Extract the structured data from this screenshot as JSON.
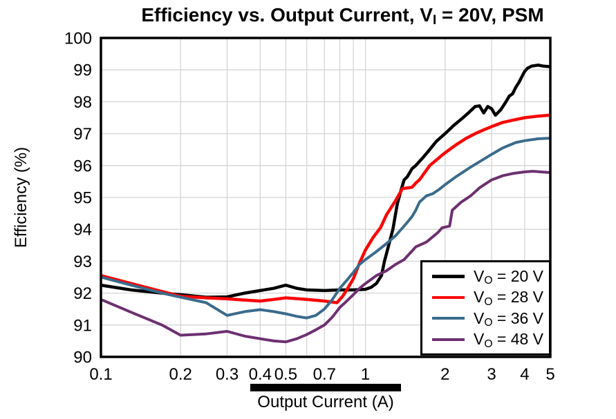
{
  "chart_data": {
    "type": "line",
    "title": "Efficiency vs. Output Current, VI = 20V, PSM",
    "title_parts": {
      "prefix": "Efficiency vs. Output Current, V",
      "sub": "I",
      "suffix": " = 20V, PSM"
    },
    "xlabel": "Output Current (A)",
    "ylabel": "Efficiency (%)",
    "x_scale": "log",
    "xlim": [
      0.1,
      5
    ],
    "ylim": [
      90,
      100
    ],
    "grid": true,
    "grid_color": "#d5d5d5",
    "frame_color": "#000000",
    "x_ticks": [
      {
        "v": 0.1,
        "label": "0.1"
      },
      {
        "v": 0.2,
        "label": "0.2"
      },
      {
        "v": 0.3,
        "label": "0.3"
      },
      {
        "v": 0.4,
        "label": "0.4"
      },
      {
        "v": 0.5,
        "label": "0.5"
      },
      {
        "v": 0.7,
        "label": "0.7"
      },
      {
        "v": 1,
        "label": "1"
      },
      {
        "v": 2,
        "label": "2"
      },
      {
        "v": 3,
        "label": "3"
      },
      {
        "v": 4,
        "label": "4"
      },
      {
        "v": 5,
        "label": "5"
      }
    ],
    "x_gridlines": [
      0.2,
      0.3,
      0.4,
      0.5,
      0.6,
      0.7,
      0.8,
      0.9,
      1,
      2,
      3,
      4
    ],
    "y_ticks": [
      90,
      91,
      92,
      93,
      94,
      95,
      96,
      97,
      98,
      99,
      100
    ],
    "legend_position": "lower-right",
    "series": [
      {
        "id": "vo-20",
        "name": "VO = 20 V",
        "label_parts": {
          "prefix": "V",
          "sub": "O",
          "suffix": " = 20 V"
        },
        "color": "#000000",
        "stroke_width": 4.5,
        "points": [
          [
            0.1,
            92.25
          ],
          [
            0.13,
            92.1
          ],
          [
            0.17,
            92.0
          ],
          [
            0.2,
            91.95
          ],
          [
            0.25,
            91.87
          ],
          [
            0.3,
            91.88
          ],
          [
            0.35,
            92.0
          ],
          [
            0.4,
            92.08
          ],
          [
            0.45,
            92.15
          ],
          [
            0.5,
            92.25
          ],
          [
            0.55,
            92.15
          ],
          [
            0.6,
            92.1
          ],
          [
            0.7,
            92.08
          ],
          [
            0.8,
            92.1
          ],
          [
            0.9,
            92.1
          ],
          [
            1.0,
            92.12
          ],
          [
            1.05,
            92.18
          ],
          [
            1.1,
            92.3
          ],
          [
            1.15,
            92.55
          ],
          [
            1.18,
            93.0
          ],
          [
            1.22,
            93.45
          ],
          [
            1.27,
            94.0
          ],
          [
            1.32,
            94.8
          ],
          [
            1.36,
            95.2
          ],
          [
            1.4,
            95.55
          ],
          [
            1.44,
            95.65
          ],
          [
            1.5,
            95.9
          ],
          [
            1.55,
            96.0
          ],
          [
            1.65,
            96.25
          ],
          [
            1.75,
            96.5
          ],
          [
            1.85,
            96.75
          ],
          [
            2.0,
            97.0
          ],
          [
            2.15,
            97.25
          ],
          [
            2.3,
            97.45
          ],
          [
            2.45,
            97.65
          ],
          [
            2.6,
            97.85
          ],
          [
            2.7,
            97.87
          ],
          [
            2.8,
            97.65
          ],
          [
            2.9,
            97.85
          ],
          [
            3.0,
            97.78
          ],
          [
            3.1,
            97.58
          ],
          [
            3.25,
            97.75
          ],
          [
            3.4,
            98.0
          ],
          [
            3.5,
            98.18
          ],
          [
            3.6,
            98.25
          ],
          [
            3.7,
            98.45
          ],
          [
            3.8,
            98.6
          ],
          [
            3.9,
            98.78
          ],
          [
            4.0,
            98.95
          ],
          [
            4.1,
            99.05
          ],
          [
            4.25,
            99.12
          ],
          [
            4.5,
            99.15
          ],
          [
            4.7,
            99.12
          ],
          [
            5.0,
            99.1
          ]
        ]
      },
      {
        "id": "vo-28",
        "name": "VO = 28 V",
        "label_parts": {
          "prefix": "V",
          "sub": "O",
          "suffix": " = 28 V"
        },
        "color": "#fa0606",
        "stroke_width": 4.5,
        "points": [
          [
            0.1,
            92.55
          ],
          [
            0.13,
            92.3
          ],
          [
            0.17,
            92.05
          ],
          [
            0.2,
            91.9
          ],
          [
            0.25,
            91.85
          ],
          [
            0.3,
            91.82
          ],
          [
            0.35,
            91.78
          ],
          [
            0.4,
            91.75
          ],
          [
            0.45,
            91.8
          ],
          [
            0.5,
            91.85
          ],
          [
            0.6,
            91.8
          ],
          [
            0.7,
            91.75
          ],
          [
            0.78,
            91.7
          ],
          [
            0.82,
            91.9
          ],
          [
            0.85,
            92.1
          ],
          [
            0.9,
            92.45
          ],
          [
            0.95,
            92.95
          ],
          [
            1.0,
            93.35
          ],
          [
            1.07,
            93.75
          ],
          [
            1.14,
            94.05
          ],
          [
            1.2,
            94.45
          ],
          [
            1.3,
            94.9
          ],
          [
            1.38,
            95.28
          ],
          [
            1.45,
            95.3
          ],
          [
            1.5,
            95.32
          ],
          [
            1.55,
            95.45
          ],
          [
            1.6,
            95.55
          ],
          [
            1.75,
            96.0
          ],
          [
            1.9,
            96.25
          ],
          [
            2.0,
            96.4
          ],
          [
            2.2,
            96.65
          ],
          [
            2.4,
            96.85
          ],
          [
            2.6,
            97.0
          ],
          [
            2.8,
            97.12
          ],
          [
            3.0,
            97.22
          ],
          [
            3.3,
            97.35
          ],
          [
            3.6,
            97.42
          ],
          [
            4.0,
            97.5
          ],
          [
            4.5,
            97.55
          ],
          [
            5.0,
            97.58
          ]
        ]
      },
      {
        "id": "vo-36",
        "name": "VO = 36 V",
        "label_parts": {
          "prefix": "V",
          "sub": "O",
          "suffix": " = 36 V"
        },
        "color": "#3a6b8c",
        "stroke_width": 4,
        "points": [
          [
            0.1,
            92.5
          ],
          [
            0.13,
            92.25
          ],
          [
            0.17,
            92.0
          ],
          [
            0.2,
            91.87
          ],
          [
            0.25,
            91.7
          ],
          [
            0.3,
            91.3
          ],
          [
            0.35,
            91.42
          ],
          [
            0.4,
            91.48
          ],
          [
            0.45,
            91.42
          ],
          [
            0.5,
            91.35
          ],
          [
            0.55,
            91.27
          ],
          [
            0.6,
            91.22
          ],
          [
            0.65,
            91.3
          ],
          [
            0.7,
            91.5
          ],
          [
            0.75,
            91.8
          ],
          [
            0.8,
            92.15
          ],
          [
            0.85,
            92.4
          ],
          [
            0.9,
            92.65
          ],
          [
            0.95,
            92.9
          ],
          [
            1.0,
            93.05
          ],
          [
            1.1,
            93.3
          ],
          [
            1.2,
            93.55
          ],
          [
            1.3,
            93.8
          ],
          [
            1.4,
            94.1
          ],
          [
            1.5,
            94.4
          ],
          [
            1.55,
            94.6
          ],
          [
            1.6,
            94.85
          ],
          [
            1.7,
            95.05
          ],
          [
            1.8,
            95.12
          ],
          [
            1.9,
            95.25
          ],
          [
            2.0,
            95.4
          ],
          [
            2.2,
            95.65
          ],
          [
            2.5,
            95.95
          ],
          [
            2.8,
            96.2
          ],
          [
            3.0,
            96.35
          ],
          [
            3.3,
            96.55
          ],
          [
            3.7,
            96.72
          ],
          [
            4.0,
            96.78
          ],
          [
            4.5,
            96.84
          ],
          [
            5.0,
            96.86
          ]
        ]
      },
      {
        "id": "vo-48",
        "name": "VO = 48 V",
        "label_parts": {
          "prefix": "V",
          "sub": "O",
          "suffix": " = 48 V"
        },
        "color": "#6d3070",
        "stroke_width": 4,
        "points": [
          [
            0.1,
            91.8
          ],
          [
            0.13,
            91.4
          ],
          [
            0.17,
            91.0
          ],
          [
            0.2,
            90.68
          ],
          [
            0.25,
            90.72
          ],
          [
            0.3,
            90.8
          ],
          [
            0.35,
            90.65
          ],
          [
            0.4,
            90.57
          ],
          [
            0.45,
            90.5
          ],
          [
            0.5,
            90.47
          ],
          [
            0.55,
            90.57
          ],
          [
            0.6,
            90.7
          ],
          [
            0.65,
            90.85
          ],
          [
            0.7,
            91.0
          ],
          [
            0.75,
            91.25
          ],
          [
            0.8,
            91.55
          ],
          [
            0.85,
            91.75
          ],
          [
            0.9,
            91.95
          ],
          [
            0.95,
            92.15
          ],
          [
            1.0,
            92.3
          ],
          [
            1.1,
            92.55
          ],
          [
            1.2,
            92.7
          ],
          [
            1.3,
            92.9
          ],
          [
            1.4,
            93.05
          ],
          [
            1.55,
            93.45
          ],
          [
            1.7,
            93.6
          ],
          [
            1.88,
            93.9
          ],
          [
            1.95,
            94.05
          ],
          [
            2.08,
            94.1
          ],
          [
            2.13,
            94.6
          ],
          [
            2.3,
            94.85
          ],
          [
            2.5,
            95.05
          ],
          [
            2.7,
            95.3
          ],
          [
            3.0,
            95.55
          ],
          [
            3.3,
            95.68
          ],
          [
            3.6,
            95.75
          ],
          [
            4.0,
            95.8
          ],
          [
            4.3,
            95.82
          ],
          [
            4.6,
            95.8
          ],
          [
            5.0,
            95.78
          ]
        ]
      }
    ]
  }
}
